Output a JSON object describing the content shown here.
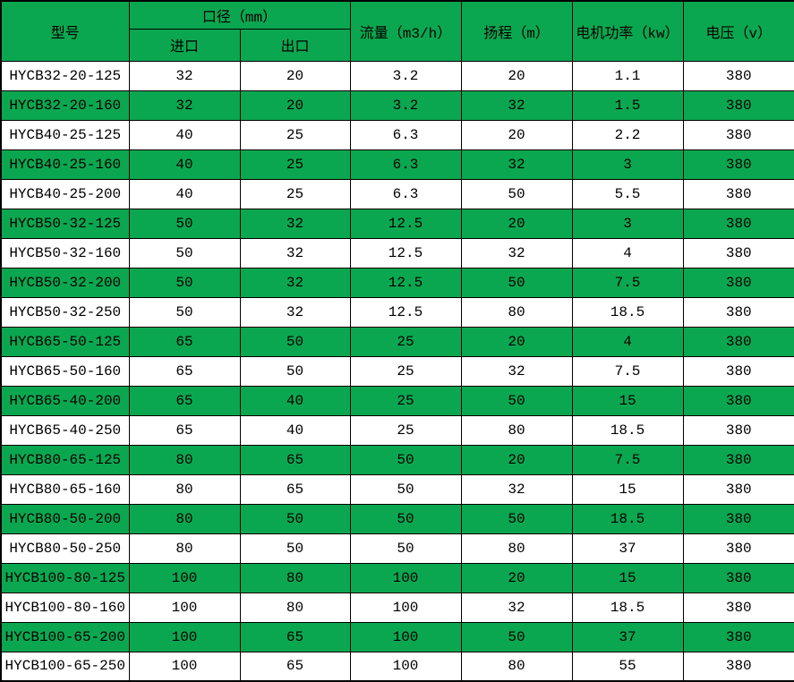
{
  "table": {
    "colors": {
      "row_green": "#0BA750",
      "header_green": "#0BA750",
      "row_white": "#FFFFFF",
      "border": "#000000",
      "text": "#000000"
    },
    "header": {
      "model": "型号",
      "caliber_group": "口径（mm）",
      "inlet": "进口",
      "outlet": "出口",
      "flow": "流量（m3/h）",
      "head": "扬程（m）",
      "power": "电机功率（kw）",
      "voltage": "电压（v）"
    },
    "rows": [
      [
        "HYCB32-20-125",
        "32",
        "20",
        "3.2",
        "20",
        "1.1",
        "380"
      ],
      [
        "HYCB32-20-160",
        "32",
        "20",
        "3.2",
        "32",
        "1.5",
        "380"
      ],
      [
        "HYCB40-25-125",
        "40",
        "25",
        "6.3",
        "20",
        "2.2",
        "380"
      ],
      [
        "HYCB40-25-160",
        "40",
        "25",
        "6.3",
        "32",
        "3",
        "380"
      ],
      [
        "HYCB40-25-200",
        "40",
        "25",
        "6.3",
        "50",
        "5.5",
        "380"
      ],
      [
        "HYCB50-32-125",
        "50",
        "32",
        "12.5",
        "20",
        "3",
        "380"
      ],
      [
        "HYCB50-32-160",
        "50",
        "32",
        "12.5",
        "32",
        "4",
        "380"
      ],
      [
        "HYCB50-32-200",
        "50",
        "32",
        "12.5",
        "50",
        "7.5",
        "380"
      ],
      [
        "HYCB50-32-250",
        "50",
        "32",
        "12.5",
        "80",
        "18.5",
        "380"
      ],
      [
        "HYCB65-50-125",
        "65",
        "50",
        "25",
        "20",
        "4",
        "380"
      ],
      [
        "HYCB65-50-160",
        "65",
        "50",
        "25",
        "32",
        "7.5",
        "380"
      ],
      [
        "HYCB65-40-200",
        "65",
        "40",
        "25",
        "50",
        "15",
        "380"
      ],
      [
        "HYCB65-40-250",
        "65",
        "40",
        "25",
        "80",
        "18.5",
        "380"
      ],
      [
        "HYCB80-65-125",
        "80",
        "65",
        "50",
        "20",
        "7.5",
        "380"
      ],
      [
        "HYCB80-65-160",
        "80",
        "65",
        "50",
        "32",
        "15",
        "380"
      ],
      [
        "HYCB80-50-200",
        "80",
        "50",
        "50",
        "50",
        "18.5",
        "380"
      ],
      [
        "HYCB80-50-250",
        "80",
        "50",
        "50",
        "80",
        "37",
        "380"
      ],
      [
        "HYCB100-80-125",
        "100",
        "80",
        "100",
        "20",
        "15",
        "380"
      ],
      [
        "HYCB100-80-160",
        "100",
        "80",
        "100",
        "32",
        "18.5",
        "380"
      ],
      [
        "HYCB100-65-200",
        "100",
        "65",
        "100",
        "50",
        "37",
        "380"
      ],
      [
        "HYCB100-65-250",
        "100",
        "65",
        "100",
        "80",
        "55",
        "380"
      ]
    ]
  }
}
